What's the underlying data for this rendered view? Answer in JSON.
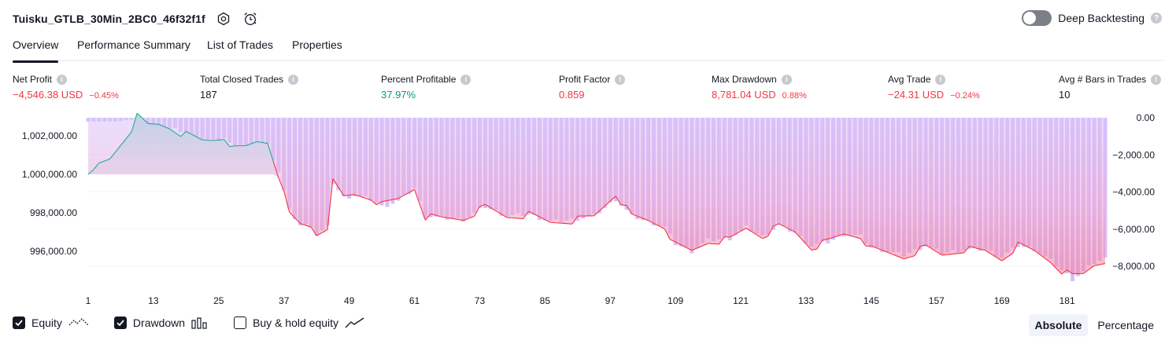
{
  "header": {
    "title": "Tuisku_GTLB_30Min_2BC0_46f32f1f",
    "settings_icon": "settings-gear-icon",
    "alert_icon": "alarm-clock-icon"
  },
  "deep_backtesting": {
    "label": "Deep Backtesting",
    "enabled": false,
    "help": "?"
  },
  "tabs": [
    {
      "label": "Overview",
      "active": true
    },
    {
      "label": "Performance Summary",
      "active": false
    },
    {
      "label": "List of Trades",
      "active": false
    },
    {
      "label": "Properties",
      "active": false
    }
  ],
  "metrics": {
    "net_profit": {
      "label": "Net Profit",
      "value": "−4,546.38 USD",
      "pct": "−0.45%",
      "color": "#f23645"
    },
    "closed_trades": {
      "label": "Total Closed Trades",
      "value": "187"
    },
    "percent_profitable": {
      "label": "Percent Profitable",
      "value": "37.97%",
      "color": "#089981"
    },
    "profit_factor": {
      "label": "Profit Factor",
      "value": "0.859",
      "color": "#f23645"
    },
    "max_drawdown": {
      "label": "Max Drawdown",
      "value": "8,781.04 USD",
      "pct": "0.88%",
      "color": "#f23645"
    },
    "avg_trade": {
      "label": "Avg Trade",
      "value": "−24.31 USD",
      "pct": "−0.24%",
      "color": "#f23645"
    },
    "avg_bars": {
      "label": "Avg # Bars in Trades",
      "value": "10"
    }
  },
  "chart_data": {
    "type": "line",
    "x_ticks": [
      "1",
      "13",
      "25",
      "37",
      "49",
      "61",
      "73",
      "85",
      "97",
      "109",
      "121",
      "133",
      "145",
      "157",
      "169",
      "181"
    ],
    "left_ticks": [
      "1,002,000.00",
      "1,000,000.00",
      "998,000.00",
      "996,000.00"
    ],
    "right_ticks": [
      "0.00",
      "−2,000.00",
      "−4,000.00",
      "−6,000.00",
      "−8,000.00"
    ],
    "left_ylim": [
      994500,
      1003000
    ],
    "right_ylim": [
      -8700,
      0
    ],
    "initial_equity": 1000000,
    "equity_keypoints": [
      [
        1,
        1000000
      ],
      [
        3,
        1000500
      ],
      [
        5,
        1000800
      ],
      [
        7,
        1001600
      ],
      [
        9,
        1002400
      ],
      [
        10,
        1003000
      ],
      [
        12,
        1002550
      ],
      [
        14,
        1002600
      ],
      [
        16,
        1002450
      ],
      [
        18,
        1002150
      ],
      [
        20,
        1001950
      ],
      [
        22,
        1001750
      ],
      [
        24,
        1001800
      ],
      [
        26,
        1001950
      ],
      [
        28,
        1001300
      ],
      [
        30,
        1001400
      ],
      [
        32,
        1001700
      ],
      [
        34,
        1001700
      ],
      [
        36,
        1000000
      ],
      [
        38,
        997900
      ],
      [
        40,
        997400
      ],
      [
        42,
        997300
      ],
      [
        43,
        996900
      ],
      [
        45,
        997300
      ],
      [
        46,
        999600
      ],
      [
        48,
        998800
      ],
      [
        50,
        998950
      ],
      [
        53,
        998800
      ],
      [
        55,
        998400
      ],
      [
        58,
        998700
      ],
      [
        61,
        999300
      ],
      [
        63,
        997800
      ],
      [
        66,
        997700
      ],
      [
        70,
        997700
      ],
      [
        74,
        998300
      ],
      [
        78,
        997800
      ],
      [
        82,
        997900
      ],
      [
        86,
        997500
      ],
      [
        90,
        997600
      ],
      [
        94,
        997800
      ],
      [
        98,
        999000
      ],
      [
        101,
        997800
      ],
      [
        104,
        997600
      ],
      [
        107,
        997300
      ],
      [
        109,
        996300
      ],
      [
        112,
        996000
      ],
      [
        115,
        996500
      ],
      [
        119,
        996600
      ],
      [
        122,
        997200
      ],
      [
        125,
        996800
      ],
      [
        128,
        997300
      ],
      [
        131,
        997000
      ],
      [
        134,
        996200
      ],
      [
        137,
        996500
      ],
      [
        140,
        996900
      ],
      [
        143,
        996800
      ],
      [
        145,
        996100
      ],
      [
        148,
        995900
      ],
      [
        151,
        995700
      ],
      [
        155,
        996200
      ],
      [
        158,
        995800
      ],
      [
        162,
        996100
      ],
      [
        166,
        996000
      ],
      [
        169,
        995600
      ],
      [
        172,
        996300
      ],
      [
        175,
        996000
      ],
      [
        178,
        995500
      ],
      [
        180,
        995000
      ],
      [
        182,
        994700
      ],
      [
        184,
        994800
      ],
      [
        186,
        995300
      ],
      [
        188,
        995500
      ]
    ],
    "drawdown_keypoints": [
      [
        1,
        -200
      ],
      [
        6,
        -200
      ],
      [
        9,
        -100
      ],
      [
        10,
        0
      ],
      [
        12,
        -500
      ],
      [
        16,
        -600
      ],
      [
        18,
        -700
      ],
      [
        20,
        -1200
      ],
      [
        22,
        -1100
      ],
      [
        24,
        -1300
      ],
      [
        26,
        -1100
      ],
      [
        28,
        -1700
      ],
      [
        30,
        -1800
      ],
      [
        32,
        -1500
      ],
      [
        34,
        -1500
      ],
      [
        36,
        -2900
      ],
      [
        38,
        -5000
      ],
      [
        40,
        -5800
      ],
      [
        42,
        -5800
      ],
      [
        43,
        -6300
      ],
      [
        45,
        -5900
      ],
      [
        46,
        -3500
      ],
      [
        48,
        -4300
      ],
      [
        50,
        -4200
      ],
      [
        53,
        -4400
      ],
      [
        55,
        -4800
      ],
      [
        58,
        -4500
      ],
      [
        61,
        -3800
      ],
      [
        63,
        -5300
      ],
      [
        66,
        -5400
      ],
      [
        70,
        -5500
      ],
      [
        74,
        -4800
      ],
      [
        78,
        -5300
      ],
      [
        82,
        -5200
      ],
      [
        86,
        -5600
      ],
      [
        90,
        -5500
      ],
      [
        94,
        -5300
      ],
      [
        98,
        -4400
      ],
      [
        101,
        -5300
      ],
      [
        104,
        -5600
      ],
      [
        107,
        -5900
      ],
      [
        109,
        -6800
      ],
      [
        112,
        -7200
      ],
      [
        115,
        -6600
      ],
      [
        119,
        -6500
      ],
      [
        122,
        -5900
      ],
      [
        125,
        -6400
      ],
      [
        128,
        -5800
      ],
      [
        131,
        -6200
      ],
      [
        134,
        -6900
      ],
      [
        137,
        -6700
      ],
      [
        140,
        -6300
      ],
      [
        143,
        -6400
      ],
      [
        145,
        -7000
      ],
      [
        148,
        -7200
      ],
      [
        151,
        -7400
      ],
      [
        155,
        -6900
      ],
      [
        158,
        -7300
      ],
      [
        162,
        -7100
      ],
      [
        166,
        -7100
      ],
      [
        169,
        -7500
      ],
      [
        172,
        -6900
      ],
      [
        175,
        -7100
      ],
      [
        178,
        -7700
      ],
      [
        180,
        -8200
      ],
      [
        182,
        -8700
      ],
      [
        184,
        -8300
      ],
      [
        186,
        -7800
      ],
      [
        188,
        -7600
      ]
    ],
    "colors": {
      "equity_up": "#22ab94",
      "equity_down": "#f23645",
      "drawdown_bar": "#b39ddb",
      "grid": "#f0f3fa"
    }
  },
  "legend": {
    "equity": {
      "label": "Equity",
      "checked": true,
      "icon": "equity-line-icon"
    },
    "drawdown": {
      "label": "Drawdown",
      "checked": true,
      "icon": "drawdown-bars-icon"
    },
    "buy_hold": {
      "label": "Buy & hold equity",
      "checked": false,
      "icon": "buy-hold-line-icon"
    }
  },
  "view_mode": {
    "absolute": "Absolute",
    "percentage": "Percentage",
    "selected": "absolute"
  }
}
